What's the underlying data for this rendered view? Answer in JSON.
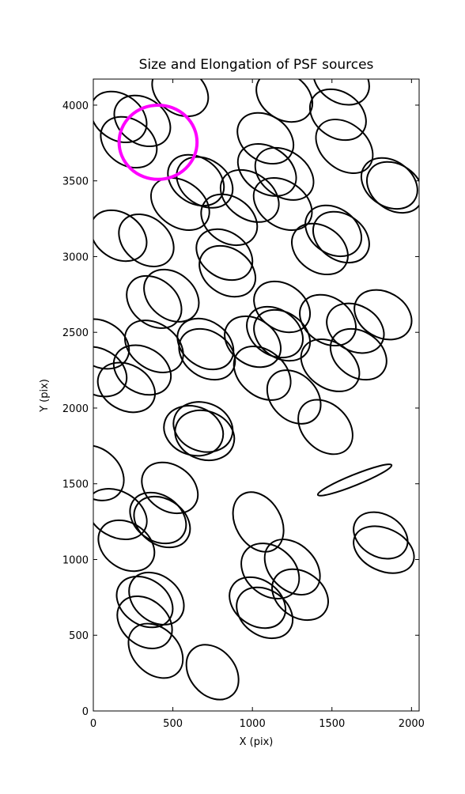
{
  "chart_data": {
    "type": "ellipse",
    "title": "Size and Elongation of PSF sources",
    "x_label": "X (pix)",
    "y_label": "Y (pix)",
    "xlim": [
      0,
      2048
    ],
    "ylim": [
      0,
      4172
    ],
    "xticks": [
      0,
      500,
      1000,
      1500,
      2000
    ],
    "yticks": [
      0,
      500,
      1000,
      1500,
      2000,
      2500,
      3000,
      3500,
      4000
    ],
    "color": "#000000",
    "ellipses": {
      "x": [
        749,
        392,
        323,
        397,
        323,
        208,
        149,
        407,
        432,
        481,
        10,
        1037,
        1112,
        1251,
        1300,
        1032,
        1077,
        1806,
        1826,
        1643,
        1459,
        1261,
        1062,
        1002,
        1141,
        1186,
        1186,
        1474,
        1489,
        1647,
        1667,
        1821,
        705,
        715,
        630,
        690,
        700,
        382,
        308,
        208,
        30,
        45,
        382,
        491,
        159,
        333,
        824,
        843,
        546,
        645,
        700,
        854,
        983,
        1092,
        1201,
        1191,
        1082,
        1201,
        1538,
        1578,
        1509,
        1558,
        1424,
        1861,
        1896,
        1558,
        546,
        308,
        159,
        223
      ],
      "y": [
        256,
        397,
        585,
        742,
        720,
        1091,
        1300,
        1274,
        1248,
        1473,
        1572,
        1248,
        924,
        950,
        768,
        715,
        648,
        1159,
        1065,
        1525,
        1875,
        2073,
        2230,
        2438,
        2501,
        2480,
        2668,
        2580,
        2282,
        2527,
        2355,
        2616,
        2423,
        2355,
        1850,
        1875,
        1820,
        2407,
        2251,
        2136,
        2240,
        2423,
        2700,
        2742,
        3138,
        3107,
        3013,
        2903,
        3347,
        3504,
        3490,
        3243,
        3400,
        3572,
        3546,
        3347,
        3781,
        4057,
        3937,
        3728,
        3170,
        3128,
        3050,
        3483,
        3457,
        4170,
        4094,
        3896,
        3922,
        3755
      ],
      "width": [
        380,
        390,
        380,
        380,
        380,
        380,
        400,
        380,
        380,
        380,
        400,
        400,
        400,
        400,
        380,
        380,
        380,
        360,
        400,
        500,
        390,
        380,
        400,
        380,
        380,
        380,
        380,
        380,
        400,
        380,
        380,
        380,
        380,
        380,
        380,
        380,
        380,
        400,
        380,
        380,
        380,
        380,
        380,
        380,
        380,
        380,
        380,
        380,
        400,
        380,
        380,
        380,
        400,
        400,
        400,
        400,
        380,
        380,
        380,
        400,
        380,
        380,
        380,
        380,
        380,
        380,
        380,
        380,
        380,
        380
      ],
      "height": [
        300,
        300,
        300,
        300,
        300,
        300,
        300,
        300,
        300,
        300,
        320,
        300,
        320,
        300,
        300,
        300,
        300,
        280,
        280,
        70,
        300,
        300,
        300,
        300,
        300,
        300,
        300,
        300,
        300,
        300,
        300,
        300,
        300,
        300,
        320,
        320,
        320,
        300,
        300,
        300,
        300,
        300,
        300,
        300,
        300,
        300,
        300,
        300,
        300,
        300,
        300,
        300,
        300,
        300,
        300,
        300,
        300,
        300,
        300,
        300,
        300,
        300,
        300,
        300,
        300,
        300,
        300,
        300,
        300,
        300
      ],
      "angle": [
        -50,
        -45,
        -40,
        -40,
        -35,
        -35,
        -30,
        -35,
        -35,
        -35,
        -40,
        -60,
        -40,
        -45,
        -35,
        -35,
        -35,
        -30,
        -25,
        22,
        -45,
        -45,
        -40,
        -35,
        -35,
        -35,
        -35,
        -35,
        -35,
        -30,
        -35,
        -30,
        -35,
        -35,
        -20,
        -20,
        -20,
        -35,
        -30,
        -30,
        -30,
        -30,
        -40,
        -40,
        -35,
        -40,
        -35,
        -35,
        -35,
        -35,
        -35,
        -35,
        -35,
        -35,
        -35,
        -35,
        -35,
        -35,
        -35,
        -40,
        -35,
        -35,
        -35,
        -35,
        -35,
        -35,
        -35,
        -35,
        -35,
        -35
      ]
    },
    "circle": {
      "x": 407,
      "y": 3755,
      "radius": 245,
      "color": "#ff00ff"
    }
  }
}
